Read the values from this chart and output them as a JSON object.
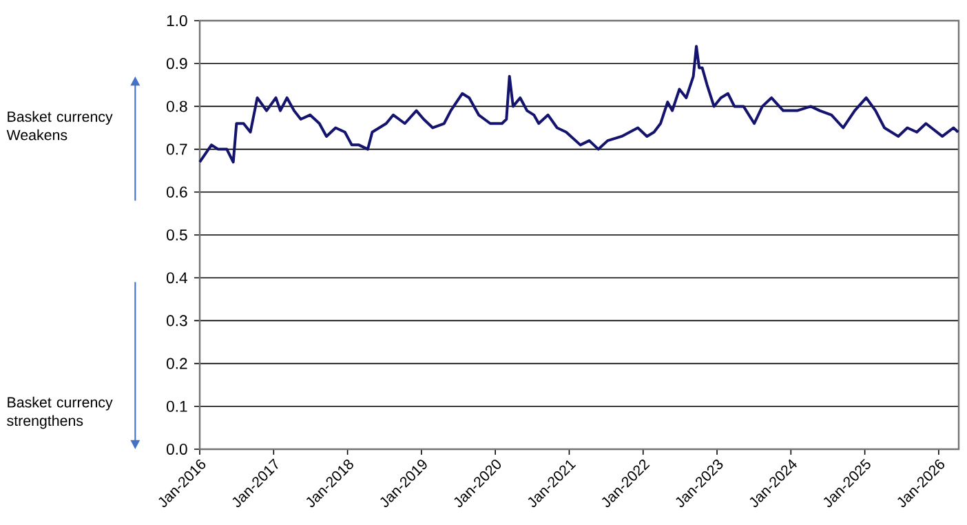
{
  "chart_data": {
    "type": "line",
    "x": [
      "2016-01-01",
      "2016-02-28",
      "2016-04-01",
      "2016-05-14",
      "2016-06-15",
      "2016-07-01",
      "2016-08-05",
      "2016-09-08",
      "2016-10-12",
      "2016-11-27",
      "2017-01-12",
      "2017-02-03",
      "2017-03-08",
      "2017-04-12",
      "2017-05-15",
      "2017-06-30",
      "2017-08-15",
      "2017-09-19",
      "2017-11-03",
      "2017-12-19",
      "2018-01-22",
      "2018-02-26",
      "2018-04-11",
      "2018-05-03",
      "2018-07-11",
      "2018-08-15",
      "2018-10-11",
      "2018-12-07",
      "2019-01-12",
      "2019-02-26",
      "2019-04-23",
      "2019-05-26",
      "2019-07-22",
      "2019-08-25",
      "2019-10-11",
      "2019-12-07",
      "2020-02-03",
      "2020-02-25",
      "2020-03-11",
      "2020-03-29",
      "2020-05-03",
      "2020-06-06",
      "2020-07-10",
      "2020-08-03",
      "2020-09-18",
      "2020-11-02",
      "2020-12-17",
      "2021-02-25",
      "2021-04-10",
      "2021-05-25",
      "2021-07-10",
      "2021-09-17",
      "2021-12-06",
      "2022-01-20",
      "2022-02-24",
      "2022-03-28",
      "2022-05-02",
      "2022-05-25",
      "2022-06-29",
      "2022-08-02",
      "2022-09-06",
      "2022-09-21",
      "2022-10-05",
      "2022-10-20",
      "2022-11-13",
      "2022-12-17",
      "2023-01-20",
      "2023-02-24",
      "2023-03-28",
      "2023-05-12",
      "2023-07-04",
      "2023-08-13",
      "2023-09-27",
      "2023-11-24",
      "2024-02-01",
      "2024-04-08",
      "2024-05-23",
      "2024-07-20",
      "2024-09-16",
      "2024-11-12",
      "2025-01-08",
      "2025-02-23",
      "2025-04-08",
      "2025-06-15",
      "2025-07-30",
      "2025-09-15",
      "2025-10-30",
      "2026-01-19",
      "2026-03-15",
      "2026-04-07"
    ],
    "series": [
      {
        "color": "#14146e",
        "values": [
          0.67,
          0.71,
          0.7,
          0.7,
          0.67,
          0.76,
          0.76,
          0.74,
          0.82,
          0.79,
          0.82,
          0.79,
          0.82,
          0.79,
          0.77,
          0.78,
          0.76,
          0.73,
          0.75,
          0.74,
          0.71,
          0.71,
          0.7,
          0.74,
          0.76,
          0.78,
          0.76,
          0.79,
          0.77,
          0.75,
          0.76,
          0.79,
          0.83,
          0.82,
          0.78,
          0.76,
          0.76,
          0.77,
          0.87,
          0.8,
          0.82,
          0.79,
          0.78,
          0.76,
          0.78,
          0.75,
          0.74,
          0.71,
          0.72,
          0.7,
          0.72,
          0.73,
          0.75,
          0.73,
          0.74,
          0.76,
          0.81,
          0.79,
          0.84,
          0.82,
          0.87,
          0.94,
          0.89,
          0.89,
          0.85,
          0.8,
          0.82,
          0.83,
          0.8,
          0.8,
          0.76,
          0.8,
          0.82,
          0.79,
          0.79,
          0.8,
          0.79,
          0.78,
          0.75,
          0.79,
          0.82,
          0.79,
          0.75,
          0.73,
          0.75,
          0.74,
          0.76,
          0.73,
          0.75,
          0.74
        ]
      }
    ],
    "xlim": [
      "2016-01-01",
      "2026-04-10"
    ],
    "xticks": [
      {
        "value": "2016-01-01",
        "label": "Jan-2016"
      },
      {
        "value": "2017-01-01",
        "label": "Jan-2017"
      },
      {
        "value": "2018-01-01",
        "label": "Jan-2018"
      },
      {
        "value": "2019-01-01",
        "label": "Jan-2019"
      },
      {
        "value": "2020-01-01",
        "label": "Jan-2020"
      },
      {
        "value": "2021-01-01",
        "label": "Jan-2021"
      },
      {
        "value": "2022-01-01",
        "label": "Jan-2022"
      },
      {
        "value": "2023-01-01",
        "label": "Jan-2023"
      },
      {
        "value": "2024-01-01",
        "label": "Jan-2024"
      },
      {
        "value": "2025-01-01",
        "label": "Jan-2025"
      },
      {
        "value": "2026-01-01",
        "label": "Jan-2026"
      }
    ],
    "ylim": [
      0,
      1.0
    ],
    "yticks": [
      {
        "value": 0,
        "label": "0.0"
      },
      {
        "value": 0.1,
        "label": "0.1"
      },
      {
        "value": 0.2,
        "label": "0.2"
      },
      {
        "value": 0.3,
        "label": "0.3"
      },
      {
        "value": 0.4,
        "label": "0.4"
      },
      {
        "value": 0.5,
        "label": "0.5"
      },
      {
        "value": 0.6,
        "label": "0.6"
      },
      {
        "value": 0.7,
        "label": "0.7"
      },
      {
        "value": 0.8,
        "label": "0.8"
      },
      {
        "value": 0.9,
        "label": "0.9"
      },
      {
        "value": 1.0,
        "label": "1.0"
      }
    ],
    "grid": "y",
    "marker": "none",
    "line_style": "solid",
    "annotations": [
      "Basket currency Weakens",
      "Basket currency strengthens"
    ]
  }
}
